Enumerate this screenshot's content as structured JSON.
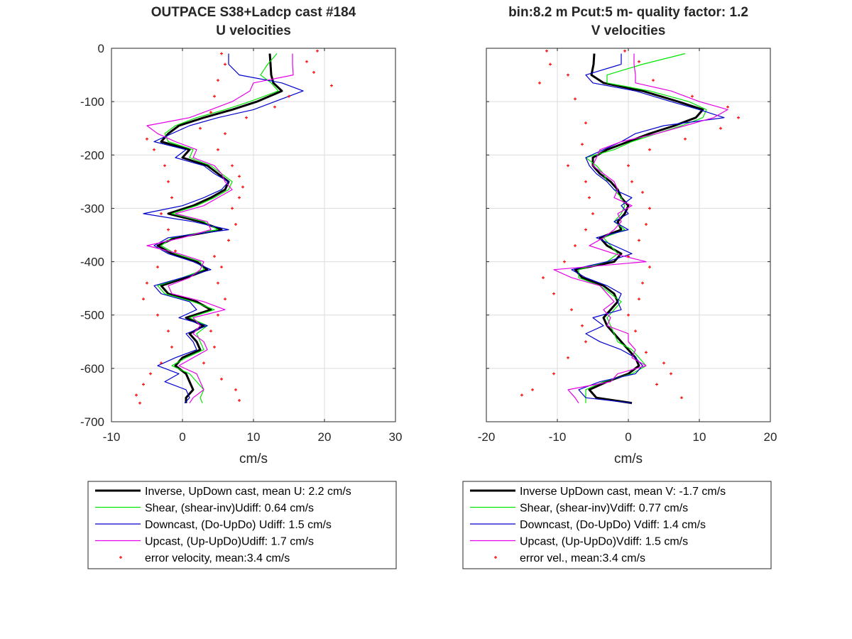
{
  "chart_data": [
    {
      "type": "line",
      "title": [
        "OUTPACE S38+Ladcp cast #184",
        "U velocities"
      ],
      "xlabel": "cm/s",
      "ylabel": "",
      "xlim": [
        -10,
        30
      ],
      "ylim": [
        -700,
        0
      ],
      "xticks": [
        -10,
        0,
        10,
        20,
        30
      ],
      "yticks": [
        0,
        -100,
        -200,
        -300,
        -400,
        -500,
        -600,
        -700
      ],
      "xtick_labels": [
        "-10",
        "0",
        "10",
        "20",
        "30"
      ],
      "ytick_labels": [
        "0",
        "-100",
        "-200",
        "-300",
        "-400",
        "-500",
        "-600",
        "-700"
      ],
      "grid": true,
      "legend_position": "below",
      "depth": [
        -10,
        -30,
        -50,
        -65,
        -80,
        -100,
        -115,
        -130,
        -145,
        -160,
        -175,
        -190,
        -205,
        -220,
        -235,
        -250,
        -265,
        -280,
        -295,
        -310,
        -325,
        -340,
        -355,
        -370,
        -385,
        -400,
        -415,
        -430,
        -445,
        -460,
        -475,
        -490,
        -505,
        -520,
        -535,
        -550,
        -565,
        -580,
        -595,
        -610,
        -625,
        -640,
        -655,
        -665
      ],
      "series": [
        {
          "name": "Inverse, UpDown cast, mean U:  2.2 cm/s",
          "color": "#000000",
          "width": 3,
          "values": [
            12.3,
            12.4,
            12.5,
            12.8,
            14.0,
            10.5,
            7.0,
            3.0,
            -0.5,
            -2.0,
            -3.0,
            1.0,
            0.0,
            3.5,
            5.0,
            6.5,
            6.0,
            4.0,
            1.5,
            -2.0,
            2.5,
            5.5,
            -1.0,
            -3.5,
            -1.5,
            2.0,
            3.5,
            0.5,
            -3.0,
            -2.0,
            2.0,
            4.0,
            0.5,
            3.0,
            1.0,
            2.0,
            2.5,
            0.0,
            -1.0,
            0.5,
            1.0,
            1.5,
            0.5,
            0.5
          ]
        },
        {
          "name": "Shear, (shear-inv)Udiff:  0.64 cm/s",
          "color": "#00e600",
          "width": 1.2,
          "values": [
            13.3,
            12.0,
            11.0,
            12.5,
            13.5,
            9.5,
            6.0,
            2.0,
            -1.0,
            -2.5,
            -2.0,
            1.5,
            1.0,
            4.0,
            5.5,
            7.0,
            6.5,
            4.5,
            2.0,
            -1.5,
            3.0,
            5.0,
            -1.5,
            -3.0,
            -1.0,
            2.5,
            3.0,
            0.0,
            -3.5,
            -2.5,
            1.5,
            4.5,
            1.0,
            3.5,
            2.0,
            2.5,
            3.0,
            0.5,
            -1.5,
            1.0,
            2.0,
            3.0,
            2.5,
            2.8
          ]
        },
        {
          "name": "Downcast, (Do-UpDo) Udiff:  1.5 cm/s",
          "color": "#0000cc",
          "width": 1.2,
          "values": [
            6.5,
            6.5,
            8.0,
            14.0,
            17.0,
            13.0,
            10.0,
            5.0,
            1.0,
            -1.5,
            -4.0,
            0.5,
            -1.0,
            3.0,
            4.5,
            6.5,
            5.5,
            3.0,
            0.0,
            -5.5,
            1.5,
            6.5,
            -2.0,
            -4.0,
            -2.0,
            1.5,
            4.0,
            0.0,
            -4.0,
            -3.0,
            1.0,
            2.0,
            -0.5,
            3.5,
            0.5,
            1.5,
            2.0,
            -1.0,
            -3.5,
            -0.5,
            -2.5,
            0.5,
            1.0,
            0.3
          ]
        },
        {
          "name": "Upcast, (Up-UpDo)Udiff:  1.7 cm/s",
          "color": "#e600e6",
          "width": 1.2,
          "values": [
            15.5,
            15.5,
            15.6,
            10.0,
            9.5,
            7.0,
            4.0,
            1.0,
            -5.0,
            -3.5,
            -1.0,
            2.0,
            1.5,
            4.5,
            5.5,
            6.0,
            7.0,
            5.0,
            3.0,
            -1.0,
            3.5,
            4.0,
            0.0,
            -5.0,
            -0.5,
            3.0,
            2.5,
            1.0,
            -2.0,
            -1.5,
            3.0,
            6.0,
            1.5,
            2.5,
            1.5,
            3.0,
            3.5,
            1.5,
            -0.5,
            2.0,
            2.5,
            3.0,
            1.5,
            1.0
          ]
        },
        {
          "name": "error velocity, mean:3.4 cm/s",
          "color": "#ff0000",
          "marker": "dots",
          "points_left": [
            [
              5.5,
              -10
            ],
            [
              6.0,
              -30
            ],
            [
              5.0,
              -60
            ],
            [
              4.5,
              -90
            ],
            [
              4.0,
              -120
            ],
            [
              2.5,
              -150
            ],
            [
              -5.0,
              -170
            ],
            [
              -4.0,
              -190
            ],
            [
              -2.5,
              -220
            ],
            [
              -2.0,
              -250
            ],
            [
              -1.5,
              -280
            ],
            [
              -3.0,
              -310
            ],
            [
              -2.0,
              -340
            ],
            [
              -1.0,
              -380
            ],
            [
              -3.5,
              -410
            ],
            [
              -5.0,
              -440
            ],
            [
              -5.5,
              -470
            ],
            [
              -3.5,
              -500
            ],
            [
              -2.0,
              -530
            ],
            [
              -1.5,
              -560
            ],
            [
              -3.0,
              -590
            ],
            [
              -4.5,
              -610
            ],
            [
              -5.5,
              -630
            ],
            [
              -6.5,
              -650
            ],
            [
              -6.0,
              -665
            ]
          ],
          "points_right": [
            [
              19.0,
              -5
            ],
            [
              17.5,
              -25
            ],
            [
              18.5,
              -45
            ],
            [
              21.0,
              -70
            ],
            [
              15.0,
              -90
            ],
            [
              13.0,
              -110
            ],
            [
              9.0,
              -130
            ],
            [
              6.0,
              -160
            ],
            [
              5.0,
              -190
            ],
            [
              7.0,
              -220
            ],
            [
              8.0,
              -240
            ],
            [
              8.5,
              -260
            ],
            [
              8.0,
              -280
            ],
            [
              7.0,
              -300
            ],
            [
              7.5,
              -330
            ],
            [
              6.5,
              -360
            ],
            [
              4.5,
              -390
            ],
            [
              5.5,
              -410
            ],
            [
              5.0,
              -440
            ],
            [
              6.0,
              -470
            ],
            [
              5.0,
              -500
            ],
            [
              4.0,
              -530
            ],
            [
              4.5,
              -560
            ],
            [
              3.0,
              -590
            ],
            [
              5.5,
              -620
            ],
            [
              7.5,
              -640
            ],
            [
              8.0,
              -660
            ]
          ]
        }
      ]
    },
    {
      "type": "line",
      "title": [
        "bin:8.2 m  Pcut:5 m- quality factor:  1.2",
        "V velocities"
      ],
      "xlabel": "cm/s",
      "ylabel": "",
      "xlim": [
        -20,
        20
      ],
      "ylim": [
        -700,
        0
      ],
      "xticks": [
        -20,
        -10,
        0,
        10,
        20
      ],
      "yticks": [
        0,
        -100,
        -200,
        -300,
        -400,
        -500,
        -600,
        -700
      ],
      "xtick_labels": [
        "-20",
        "-10",
        "0",
        "10",
        "20"
      ],
      "ytick_labels": [],
      "grid": true,
      "legend_position": "below",
      "depth": [
        -10,
        -30,
        -50,
        -65,
        -80,
        -100,
        -115,
        -130,
        -145,
        -160,
        -175,
        -190,
        -205,
        -220,
        -235,
        -250,
        -265,
        -280,
        -295,
        -310,
        -325,
        -340,
        -355,
        -370,
        -385,
        -400,
        -415,
        -430,
        -445,
        -460,
        -475,
        -490,
        -505,
        -520,
        -535,
        -550,
        -565,
        -580,
        -595,
        -610,
        -625,
        -640,
        -655,
        -665
      ],
      "series": [
        {
          "name": "Inverse UpDown cast, mean V:  -1.7 cm/s",
          "color": "#000000",
          "width": 3,
          "values": [
            -4.8,
            -4.9,
            -5.2,
            -3.5,
            2.0,
            7.0,
            10.5,
            9.5,
            6.5,
            3.0,
            0.0,
            -3.0,
            -5.0,
            -5.0,
            -4.0,
            -2.5,
            -1.5,
            -1.0,
            0.0,
            -0.5,
            -1.5,
            -1.0,
            -4.0,
            -3.0,
            -1.0,
            -2.0,
            -7.5,
            -6.5,
            -3.5,
            -2.0,
            -1.5,
            -2.5,
            -3.5,
            -3.0,
            -2.0,
            -1.0,
            0.0,
            1.0,
            1.5,
            0.0,
            -3.0,
            -5.5,
            -4.5,
            0.5
          ]
        },
        {
          "name": "Shear, (shear-inv)Vdiff:  0.77 cm/s",
          "color": "#00e600",
          "width": 1.2,
          "values": [
            8.0,
            2.0,
            -3.0,
            -3.0,
            3.0,
            8.5,
            11.0,
            10.5,
            7.5,
            4.0,
            0.5,
            -2.0,
            -6.0,
            -4.5,
            -3.5,
            -3.0,
            -2.0,
            -1.0,
            -0.5,
            -1.0,
            -2.0,
            -0.5,
            -3.5,
            -2.5,
            -1.5,
            -3.0,
            -7.0,
            -7.0,
            -4.0,
            -2.5,
            -1.0,
            -2.0,
            -3.0,
            -2.5,
            -2.0,
            -1.5,
            0.5,
            1.5,
            2.5,
            0.5,
            -3.5,
            -6.0,
            -6.0,
            -6.0
          ]
        },
        {
          "name": "Downcast, (Do-UpDo) Vdiff:  1.4 cm/s",
          "color": "#0000cc",
          "width": 1.2,
          "values": [
            -1.0,
            -1.0,
            -6.0,
            -5.0,
            1.0,
            6.0,
            10.0,
            13.5,
            5.0,
            1.0,
            -1.0,
            -3.5,
            -6.0,
            -5.5,
            -4.5,
            -3.0,
            -2.0,
            0.5,
            -1.0,
            0.0,
            -2.0,
            0.0,
            -4.5,
            -2.0,
            0.5,
            -3.0,
            -8.0,
            -6.0,
            -3.0,
            -1.0,
            -1.5,
            -1.0,
            -5.0,
            -3.5,
            -6.0,
            -4.0,
            -1.0,
            1.0,
            2.0,
            1.0,
            -4.0,
            -7.0,
            -6.0,
            0.5
          ]
        },
        {
          "name": "Upcast, (Up-UpDo)Vdiff:  1.5 cm/s",
          "color": "#e600e6",
          "width": 1.2,
          "values": [
            0.8,
            0.8,
            1.0,
            1.0,
            6.0,
            10.0,
            14.0,
            12.0,
            8.0,
            4.0,
            -1.0,
            -4.0,
            -4.5,
            -5.0,
            -3.5,
            -2.0,
            -1.5,
            -2.0,
            0.5,
            -1.5,
            -1.0,
            -2.0,
            -3.5,
            -5.5,
            -2.0,
            2.5,
            -10.5,
            -8.0,
            -4.0,
            -3.0,
            -2.0,
            -3.5,
            -2.5,
            -3.0,
            0.0,
            0.0,
            1.0,
            0.5,
            2.5,
            -1.5,
            -2.5,
            -8.5,
            -7.5,
            -7.0
          ]
        },
        {
          "name": "error vel., mean:3.4 cm/s",
          "color": "#ff0000",
          "marker": "dots",
          "points_left": [
            [
              -11.5,
              -5
            ],
            [
              -11.0,
              -30
            ],
            [
              -8.5,
              -50
            ],
            [
              -12.5,
              -65
            ],
            [
              -7.5,
              -95
            ],
            [
              -6.0,
              -140
            ],
            [
              -6.5,
              -180
            ],
            [
              -8.5,
              -220
            ],
            [
              -6.0,
              -250
            ],
            [
              -5.5,
              -280
            ],
            [
              -5.0,
              -310
            ],
            [
              -6.0,
              -340
            ],
            [
              -7.5,
              -370
            ],
            [
              -9.0,
              -400
            ],
            [
              -12.0,
              -430
            ],
            [
              -10.5,
              -460
            ],
            [
              -8.0,
              -490
            ],
            [
              -6.5,
              -520
            ],
            [
              -6.0,
              -550
            ],
            [
              -8.5,
              -580
            ],
            [
              -10.5,
              -610
            ],
            [
              -13.5,
              -640
            ],
            [
              -15.0,
              -650
            ]
          ],
          "points_right": [
            [
              -0.5,
              -5
            ],
            [
              1.5,
              -25
            ],
            [
              3.5,
              -60
            ],
            [
              9.0,
              -90
            ],
            [
              14.0,
              -110
            ],
            [
              15.5,
              -130
            ],
            [
              13.0,
              -150
            ],
            [
              8.0,
              -170
            ],
            [
              3.0,
              -190
            ],
            [
              0.0,
              -220
            ],
            [
              0.5,
              -250
            ],
            [
              2.0,
              -270
            ],
            [
              3.0,
              -300
            ],
            [
              2.5,
              -330
            ],
            [
              1.5,
              -360
            ],
            [
              0.0,
              -390
            ],
            [
              3.0,
              -410
            ],
            [
              2.0,
              -440
            ],
            [
              1.5,
              -470
            ],
            [
              0.0,
              -500
            ],
            [
              1.0,
              -530
            ],
            [
              2.5,
              -570
            ],
            [
              5.0,
              -590
            ],
            [
              6.0,
              -610
            ],
            [
              4.0,
              -630
            ],
            [
              7.5,
              -655
            ]
          ]
        }
      ]
    }
  ]
}
